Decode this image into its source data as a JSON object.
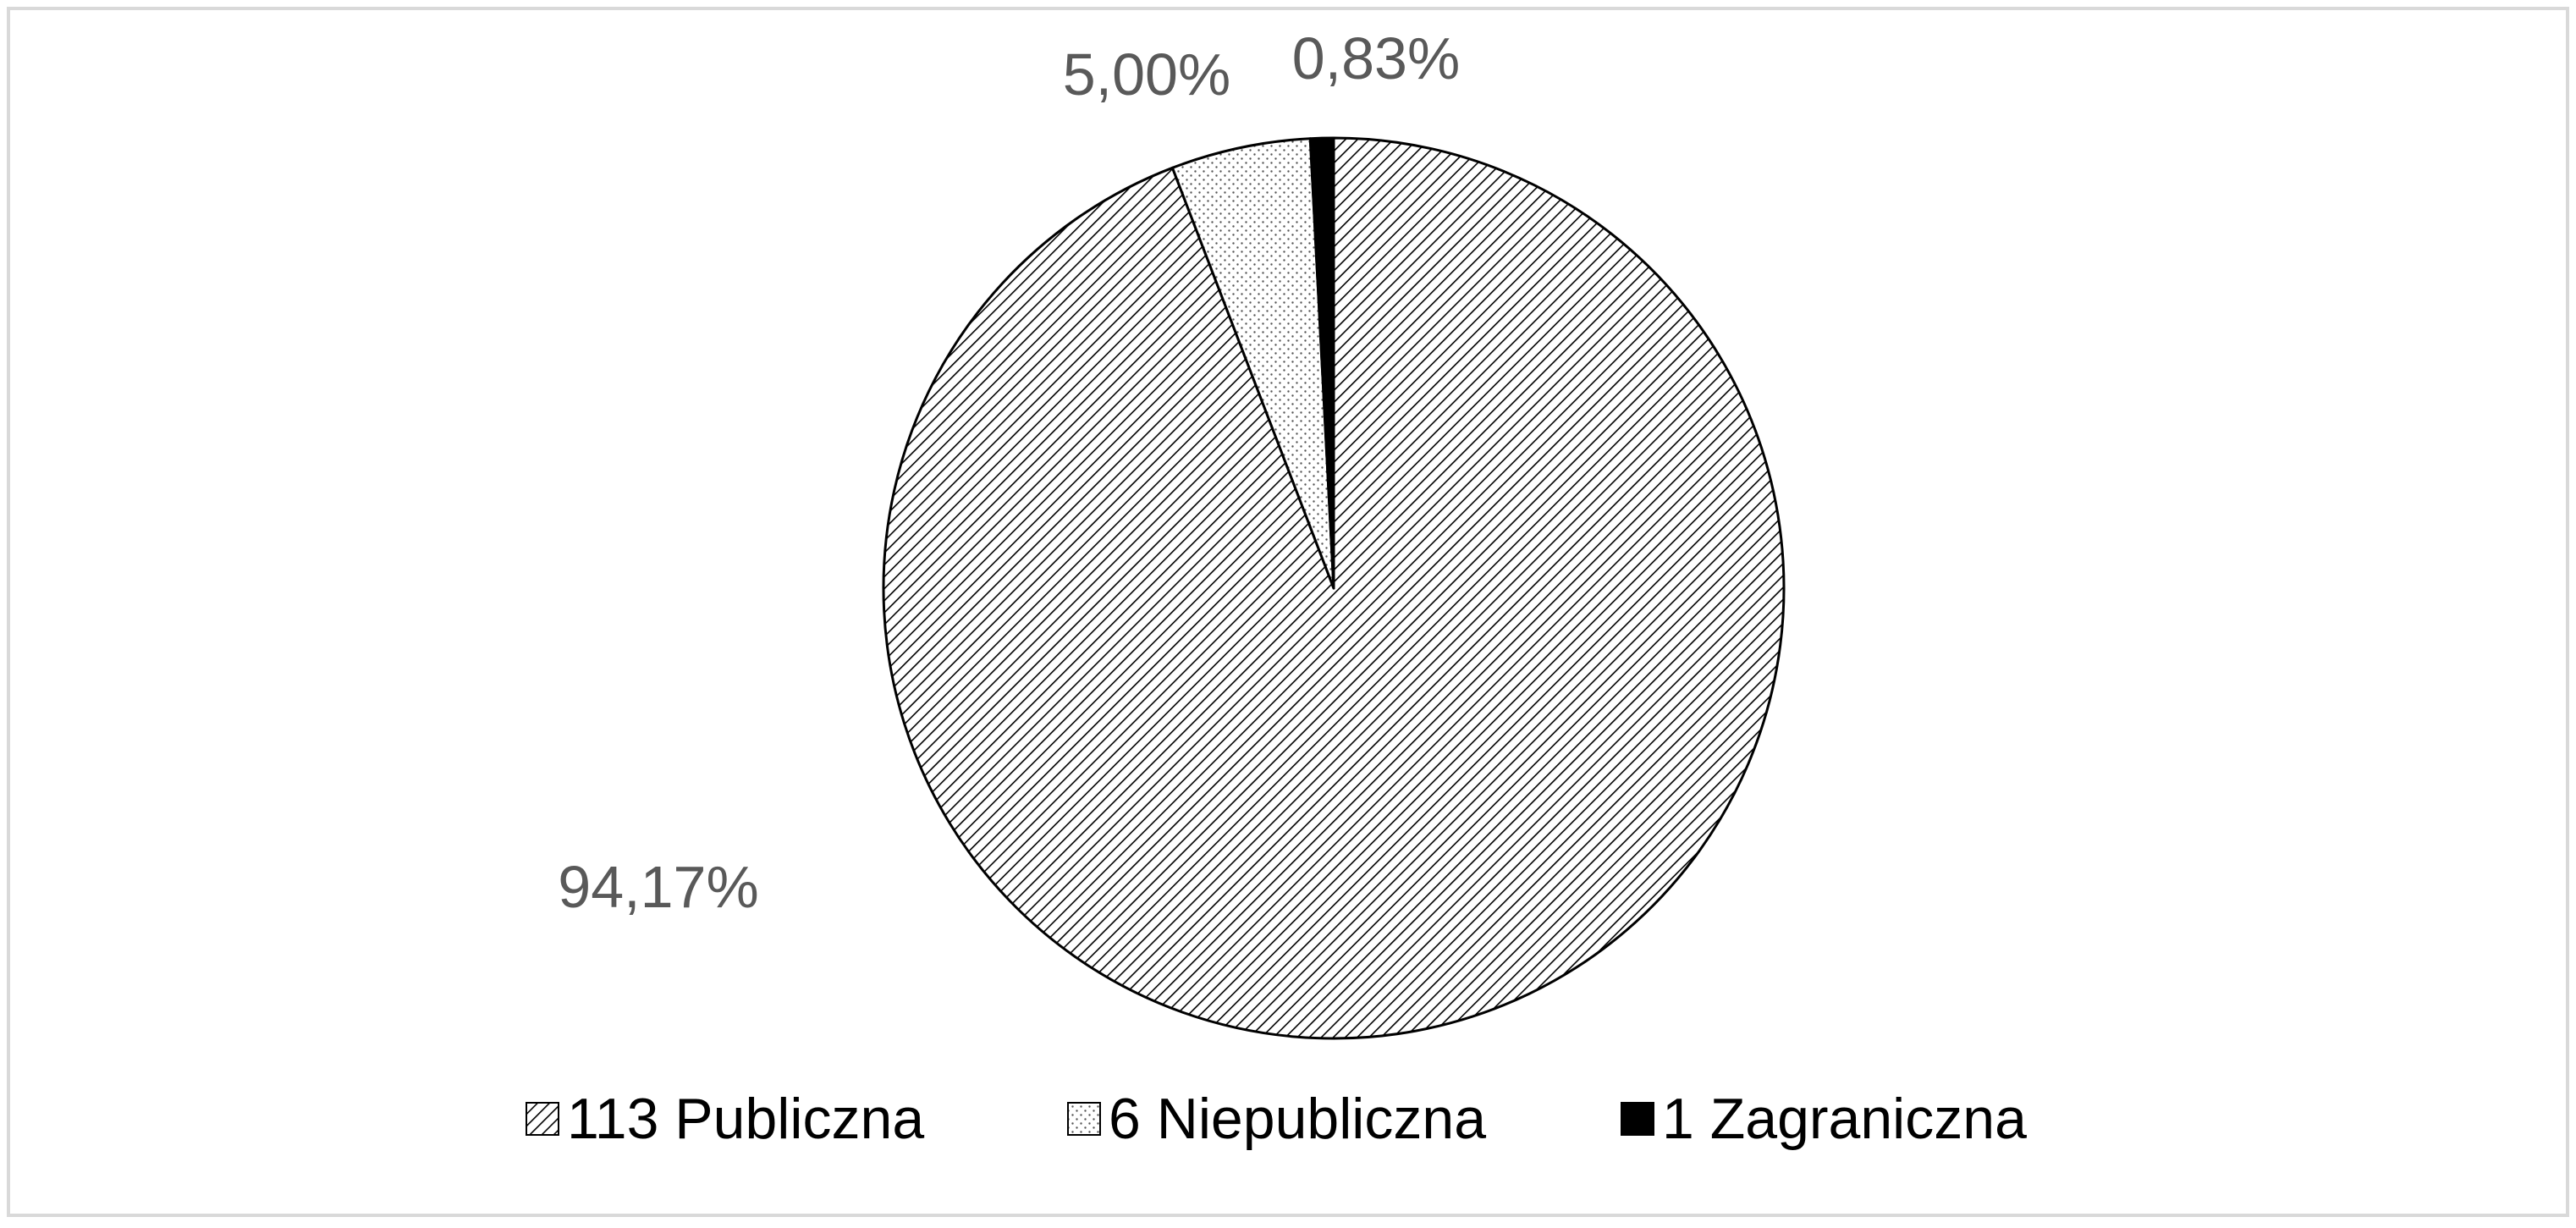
{
  "chart_data": {
    "type": "pie",
    "title": "",
    "start_angle_deg": 0,
    "direction": "clockwise",
    "legend_position": "bottom",
    "slices": [
      {
        "name": "113 Publiczna",
        "value": 94.17,
        "label": "94,17%",
        "fill": "hatch"
      },
      {
        "name": "6 Niepubliczna",
        "value": 5.0,
        "label": "5,00%",
        "fill": "dots"
      },
      {
        "name": "1 Zagraniczna",
        "value": 0.83,
        "label": "0,83%",
        "fill": "solid"
      }
    ],
    "colors": {
      "outline": "#000000",
      "solid": "#000000",
      "label_text": "#595959",
      "legend_text": "#000000",
      "frame": "#d9d9d9"
    }
  }
}
